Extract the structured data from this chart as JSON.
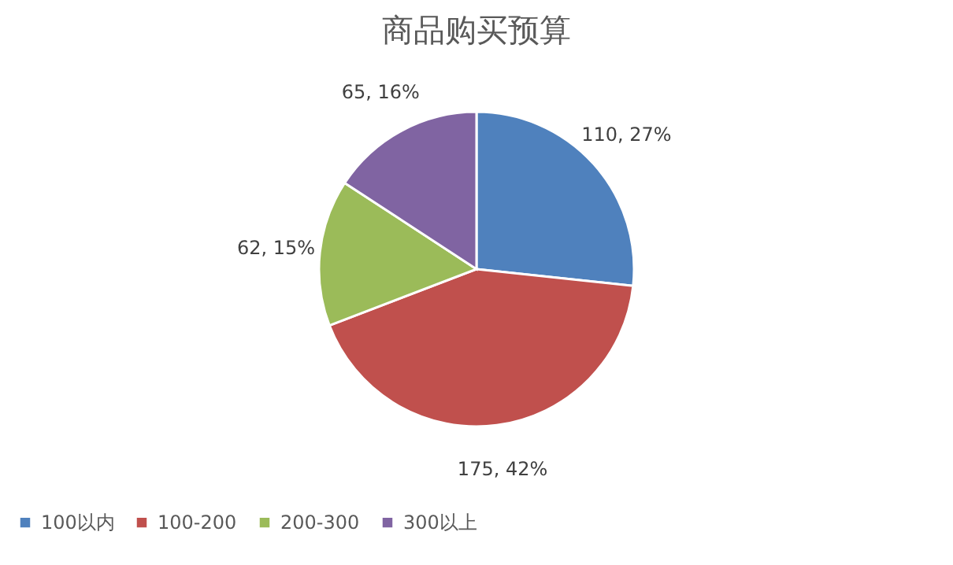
{
  "chart_data": {
    "type": "pie",
    "title": "商品购买预算",
    "categories": [
      "100以内",
      "100-200",
      "200-300",
      "300以上"
    ],
    "values": [
      110,
      175,
      62,
      65
    ],
    "colors": [
      "#4f81bd",
      "#c0504d",
      "#9bbb59",
      "#8064a2"
    ],
    "value_labels": [
      "110, 27%",
      "175, 42%",
      "62, 15%",
      "65, 16%"
    ],
    "legend": "bottom"
  }
}
